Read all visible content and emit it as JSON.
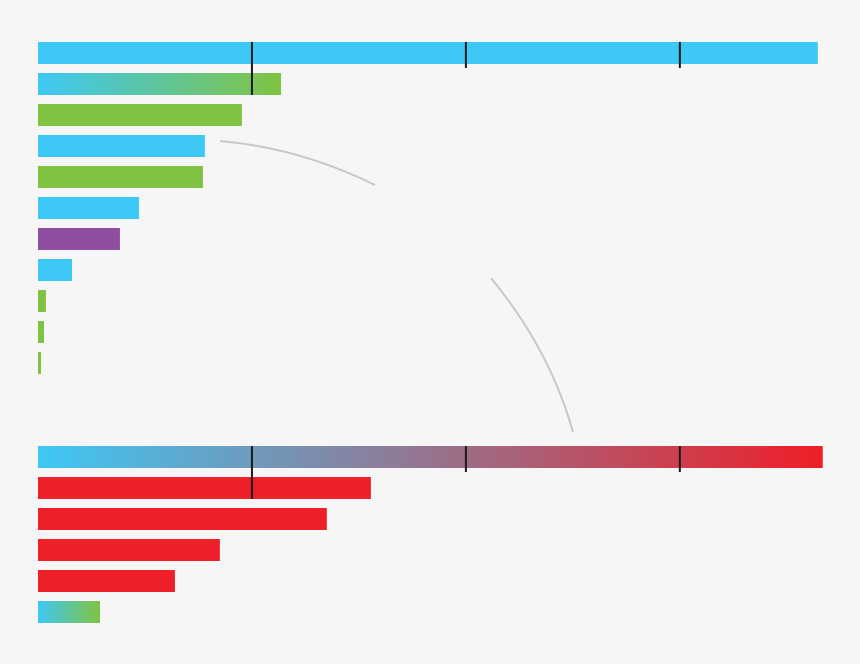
{
  "chart_data": [
    {
      "type": "bar",
      "orientation": "horizontal",
      "values": [
        364.5,
        113.6,
        95.3,
        78,
        77.1,
        47.2,
        38.3,
        15.9,
        3.7,
        2.8,
        1.4
      ],
      "colors": [
        "#3ec8f5",
        [
          "#3ec8f5",
          "#80c342"
        ],
        "#80c342",
        "#3ec8f5",
        "#80c342",
        "#3ec8f5",
        "#8e4fa0",
        "#3ec8f5",
        "#80c342",
        "#80c342",
        "#80c342"
      ],
      "xlim": [
        0,
        380
      ],
      "xticks": [
        100,
        200,
        300
      ]
    },
    {
      "type": "bar",
      "orientation": "horizontal",
      "values": [
        366.8,
        155.6,
        135,
        85,
        64,
        29
      ],
      "colors": [
        [
          "#3ec8f5",
          "#ee1f28"
        ],
        "#ee1f28",
        "#ee1f28",
        "#ee1f28",
        "#ee1f28",
        [
          "#3ec8f5",
          "#80c342"
        ]
      ],
      "xlim": [
        0,
        380
      ],
      "xticks": [
        100,
        200,
        300
      ]
    }
  ]
}
